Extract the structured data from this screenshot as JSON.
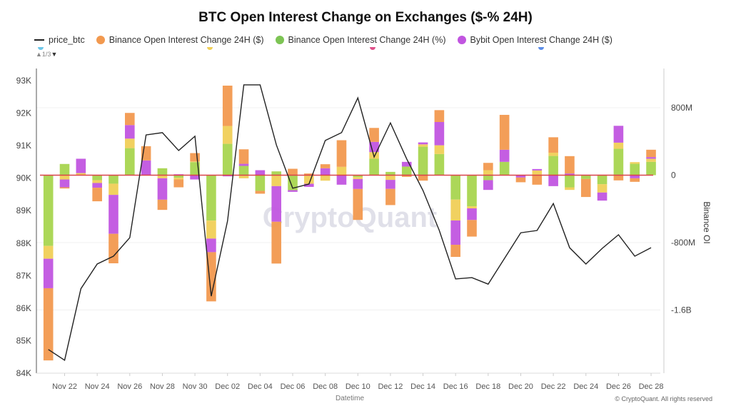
{
  "chart_data": {
    "type": "bar",
    "title": "BTC Open Interest Change on Exchanges ($-% 24H)",
    "xlabel": "Datetime",
    "ylabel_left": "",
    "ylabel_right": "Binance OI",
    "stacked": true,
    "legend_position": "top-left",
    "legend_page": "1/3",
    "grid": true,
    "x_ticks": [
      "Nov 22",
      "Nov 24",
      "Nov 26",
      "Nov 28",
      "Nov 30",
      "Dec 02",
      "Dec 04",
      "Dec 06",
      "Dec 08",
      "Dec 10",
      "Dec 12",
      "Dec 14",
      "Dec 16",
      "Dec 18",
      "Dec 20",
      "Dec 22",
      "Dec 24",
      "Dec 26",
      "Dec 28"
    ],
    "left_axis": {
      "ticks": [
        "93K",
        "92K",
        "91K",
        "90K",
        "89K",
        "88K",
        "87K",
        "86K",
        "85K",
        "84K"
      ],
      "range": [
        84000,
        93400
      ]
    },
    "right_axis": {
      "ticks": [
        "800M",
        "0",
        "-800M",
        "-1.6B"
      ],
      "range": [
        -2350000000,
        1270000000
      ]
    },
    "dates": [
      "Nov 21",
      "Nov 22",
      "Nov 23",
      "Nov 24",
      "Nov 25",
      "Nov 26",
      "Nov 27",
      "Nov 28",
      "Nov 29",
      "Nov 30",
      "Dec 01",
      "Dec 02",
      "Dec 03",
      "Dec 04",
      "Dec 05",
      "Dec 06",
      "Dec 07",
      "Dec 08",
      "Dec 09",
      "Dec 10",
      "Dec 11",
      "Dec 12",
      "Dec 13",
      "Dec 14",
      "Dec 15",
      "Dec 16",
      "Dec 17",
      "Dec 18",
      "Dec 19",
      "Dec 20",
      "Dec 21",
      "Dec 22",
      "Dec 23",
      "Dec 24",
      "Dec 25",
      "Dec 26",
      "Dec 27",
      "Dec 28"
    ],
    "line": {
      "name": "price_btc",
      "color": "#222222",
      "axis": "left",
      "values": [
        84730,
        84400,
        86600,
        87360,
        87600,
        88170,
        91330,
        91400,
        90850,
        91290,
        86370,
        88680,
        92870,
        92870,
        91020,
        89690,
        89820,
        91160,
        91400,
        92470,
        90650,
        91700,
        90590,
        89620,
        88390,
        86900,
        86940,
        86740,
        87530,
        88320,
        88390,
        89220,
        87860,
        87360,
        87840,
        88260,
        87600,
        87860
      ]
    },
    "series": [
      {
        "name": "Binance Open Interest Change 24H (%)",
        "color": "#a8d54f",
        "values": [
          -840000000.0,
          133000000.0,
          0,
          -59000000.0,
          -101000000.0,
          321000000.0,
          0,
          82000000.0,
          -31000000.0,
          155000000.0,
          -539000000.0,
          372000000.0,
          110000000.0,
          -186000000.0,
          45000000.0,
          -178000000.0,
          0,
          0,
          0,
          -23000000.0,
          195000000.0,
          39000000.0,
          102000000.0,
          338000000.0,
          251000000.0,
          -290000000.0,
          -369000000.0,
          -59000000.0,
          158000000.0,
          0,
          0,
          228000000.0,
          -144000000.0,
          -45000000.0,
          -107000000.0,
          313000000.0,
          135000000.0,
          158000000.0
        ]
      },
      {
        "color": "#f0cf57",
        "values": [
          -152000000.0,
          -51000000.0,
          25000000.0,
          -34000000.0,
          -133000000.0,
          113000000.0,
          0,
          -37000000.0,
          -20000000.0,
          8000000.0,
          -214000000.0,
          212000000.0,
          -37000000.0,
          0,
          -130000000.0,
          0,
          -102000000.0,
          -65000000.0,
          99000000.0,
          -23000000.0,
          79000000.0,
          -56000000.0,
          0,
          28000000.0,
          104000000.0,
          -248000000.0,
          -25000000.0,
          59000000.0,
          0,
          0,
          56000000.0,
          39000000.0,
          -31000000.0,
          0,
          -99000000.0,
          73000000.0,
          20000000.0,
          37000000.0
        ]
      },
      {
        "name": "Bybit Open Interest Change 24H ($)",
        "color": "#c155e0",
        "values": [
          -350000000.0,
          -93000000.0,
          170000000.0,
          -56000000.0,
          -462000000.0,
          161000000.0,
          175000000.0,
          -254000000.0,
          11000000.0,
          -51000000.0,
          -161000000.0,
          -14000000.0,
          25000000.0,
          59000000.0,
          -423000000.0,
          -20000000.0,
          -37000000.0,
          82000000.0,
          -113000000.0,
          -118000000.0,
          121000000.0,
          -107000000.0,
          56000000.0,
          23000000.0,
          276000000.0,
          -288000000.0,
          -138000000.0,
          -116000000.0,
          144000000.0,
          -28000000.0,
          17000000.0,
          -130000000.0,
          20000000.0,
          5000000.0,
          -96000000.0,
          200000000.0,
          -37000000.0,
          20000000.0
        ]
      },
      {
        "name": "Binance Open Interest Change 24H ($)",
        "color": "#f2994f",
        "values": [
          -857000000.0,
          -14000000.0,
          0,
          -161000000.0,
          -350000000.0,
          144000000.0,
          169000000.0,
          -121000000.0,
          -93000000.0,
          99000000.0,
          -584000000.0,
          479000000.0,
          172000000.0,
          -34000000.0,
          -496000000.0,
          76000000.0,
          20000000.0,
          48000000.0,
          316000000.0,
          -367000000.0,
          166000000.0,
          -192000000.0,
          -20000000.0,
          -65000000.0,
          141000000.0,
          -144000000.0,
          -197000000.0,
          87000000.0,
          414000000.0,
          -56000000.0,
          -113000000.0,
          183000000.0,
          206000000.0,
          -214000000.0,
          5000000.0,
          -62000000.0,
          -42000000.0,
          87000000.0
        ]
      }
    ],
    "zero_line_color": "#d9434a",
    "legend_hidden_colors": [
      "#6cc6e8",
      "#f0cf57",
      "#e0508a",
      "#5b8de8"
    ]
  },
  "legend": {
    "price": "price_btc",
    "binance_usd": "Binance Open Interest Change 24H ($)",
    "binance_pct": "Binance Open Interest Change 24H (%)",
    "bybit_usd": "Bybit Open Interest Change 24H ($)",
    "pager": "1/3"
  },
  "watermark": "CryptoQuant",
  "copyright": "© CryptoQuant. All rights reserved"
}
